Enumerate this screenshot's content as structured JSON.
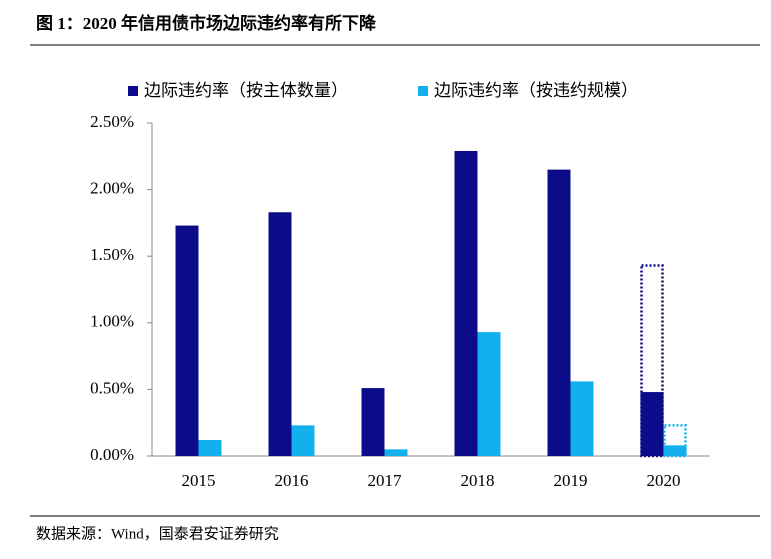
{
  "chart_data": {
    "type": "bar",
    "title": "图 1：2020 年信用债市场边际违约率有所下降",
    "source": "数据来源：Wind，国泰君安证券研究",
    "categories": [
      "2015",
      "2016",
      "2017",
      "2018",
      "2019",
      "2020"
    ],
    "series": [
      {
        "name": "边际违约率（按主体数量）",
        "color": "#0c0c8a",
        "values": [
          1.73,
          1.83,
          0.51,
          2.29,
          2.15,
          0.48
        ],
        "outline_values": [
          null,
          null,
          null,
          null,
          null,
          1.43
        ]
      },
      {
        "name": "边际违约率（按违约规模）",
        "color": "#12b0ec",
        "values": [
          0.12,
          0.23,
          0.05,
          0.93,
          0.56,
          0.08
        ],
        "outline_values": [
          null,
          null,
          null,
          null,
          null,
          0.23
        ]
      }
    ],
    "ylim": [
      0,
      2.5
    ],
    "yticks": [
      {
        "value": 0,
        "label": "0.00%"
      },
      {
        "value": 0.5,
        "label": "0.50%"
      },
      {
        "value": 1,
        "label": "1.00%"
      },
      {
        "value": 1.5,
        "label": "1.50%"
      },
      {
        "value": 2,
        "label": "2.00%"
      },
      {
        "value": 2.5,
        "label": "2.50%"
      }
    ],
    "grid": false,
    "legend": "top"
  }
}
